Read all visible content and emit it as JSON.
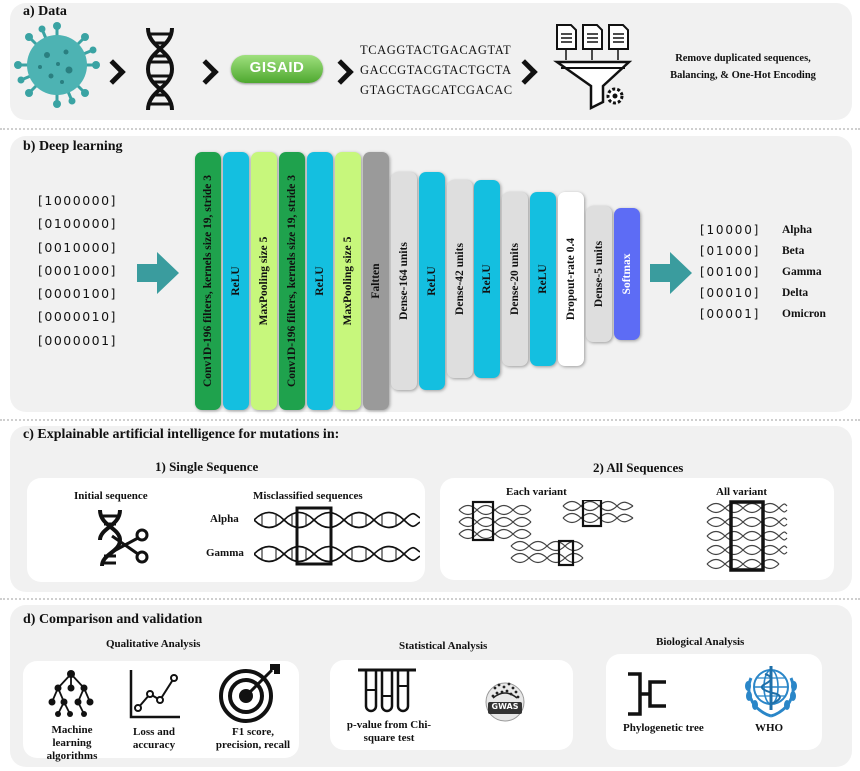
{
  "panel_a": {
    "title": "a) Data",
    "gisaid_label": "GISAID",
    "sequences": [
      "TCAGGTACTGACAGTAT",
      "GACCGTACGTACTGCTA",
      "GTAGCTAGCATCGACAC"
    ],
    "preprocess_lines": [
      "Remove duplicated sequences,",
      "Balancing, & One-Hot Encoding"
    ]
  },
  "panel_b": {
    "title": "b) Deep learning",
    "input_vectors": [
      "[1000000]",
      "[0100000]",
      "[0010000]",
      "[0001000]",
      "[0000100]",
      "[0000010]",
      "[0000001]"
    ],
    "layers": [
      {
        "label": "Conv1D-196 filters, kernels size 19, stride 3",
        "color": "#1fa24d"
      },
      {
        "label": "ReLU",
        "color": "#14bfe0"
      },
      {
        "label": "MaxPooling size 5",
        "color": "#c7f77c"
      },
      {
        "label": "Conv1D-196 filters, kernels size 19, stride 3",
        "color": "#1fa24d"
      },
      {
        "label": "ReLU",
        "color": "#14bfe0"
      },
      {
        "label": "MaxPooling size 5",
        "color": "#c7f77c"
      },
      {
        "label": "Faltten",
        "color": "#9a9a9a"
      },
      {
        "label": "Dense-164 units",
        "color": "#dedede"
      },
      {
        "label": "ReLU",
        "color": "#14bfe0"
      },
      {
        "label": "Dense-42 units",
        "color": "#dedede"
      },
      {
        "label": "ReLU",
        "color": "#14bfe0"
      },
      {
        "label": "Dense-20 units",
        "color": "#dedede"
      },
      {
        "label": "ReLU",
        "color": "#14bfe0"
      },
      {
        "label": "Dropout-rate 0.4",
        "color": "#ffffff"
      },
      {
        "label": "Dense-5 units",
        "color": "#dedede"
      },
      {
        "label": "Softmax",
        "color": "#5d6cf5"
      }
    ],
    "output_vectors": [
      "[10000]",
      "[01000]",
      "[00100]",
      "[00010]",
      "[00001]"
    ],
    "output_labels": [
      "Alpha",
      "Beta",
      "Gamma",
      "Delta",
      "Omicron"
    ]
  },
  "panel_c": {
    "title": "c) Explainable artificial intelligence for mutations in:",
    "single": {
      "heading": "1) Single Sequence",
      "initial_label": "Initial sequence",
      "misclassified_label": "Misclassified sequences",
      "row_labels": [
        "Alpha",
        "Gamma"
      ]
    },
    "all": {
      "heading": "2) All Sequences",
      "each_label": "Each variant",
      "all_label": "All variant"
    }
  },
  "panel_d": {
    "title": "d) Comparison and validation",
    "qualitative": {
      "heading": "Qualitative Analysis",
      "items": [
        "Machine learning algorithms",
        "Loss and accuracy",
        "F1 score, precision, recall"
      ]
    },
    "statistical": {
      "heading": "Statistical Analysis",
      "items": [
        "p-value from Chi-square test"
      ],
      "gwas_label": "GWAS"
    },
    "biological": {
      "heading": "Biological Analysis",
      "items": [
        "Phylogenetic tree",
        "WHO"
      ]
    }
  },
  "colors": {
    "panel_bg": "#f1f1f1",
    "arrow_teal": "#3a9c9e",
    "virus_teal": "#3aa3a3",
    "gisaid_green": "#5cb33f"
  }
}
